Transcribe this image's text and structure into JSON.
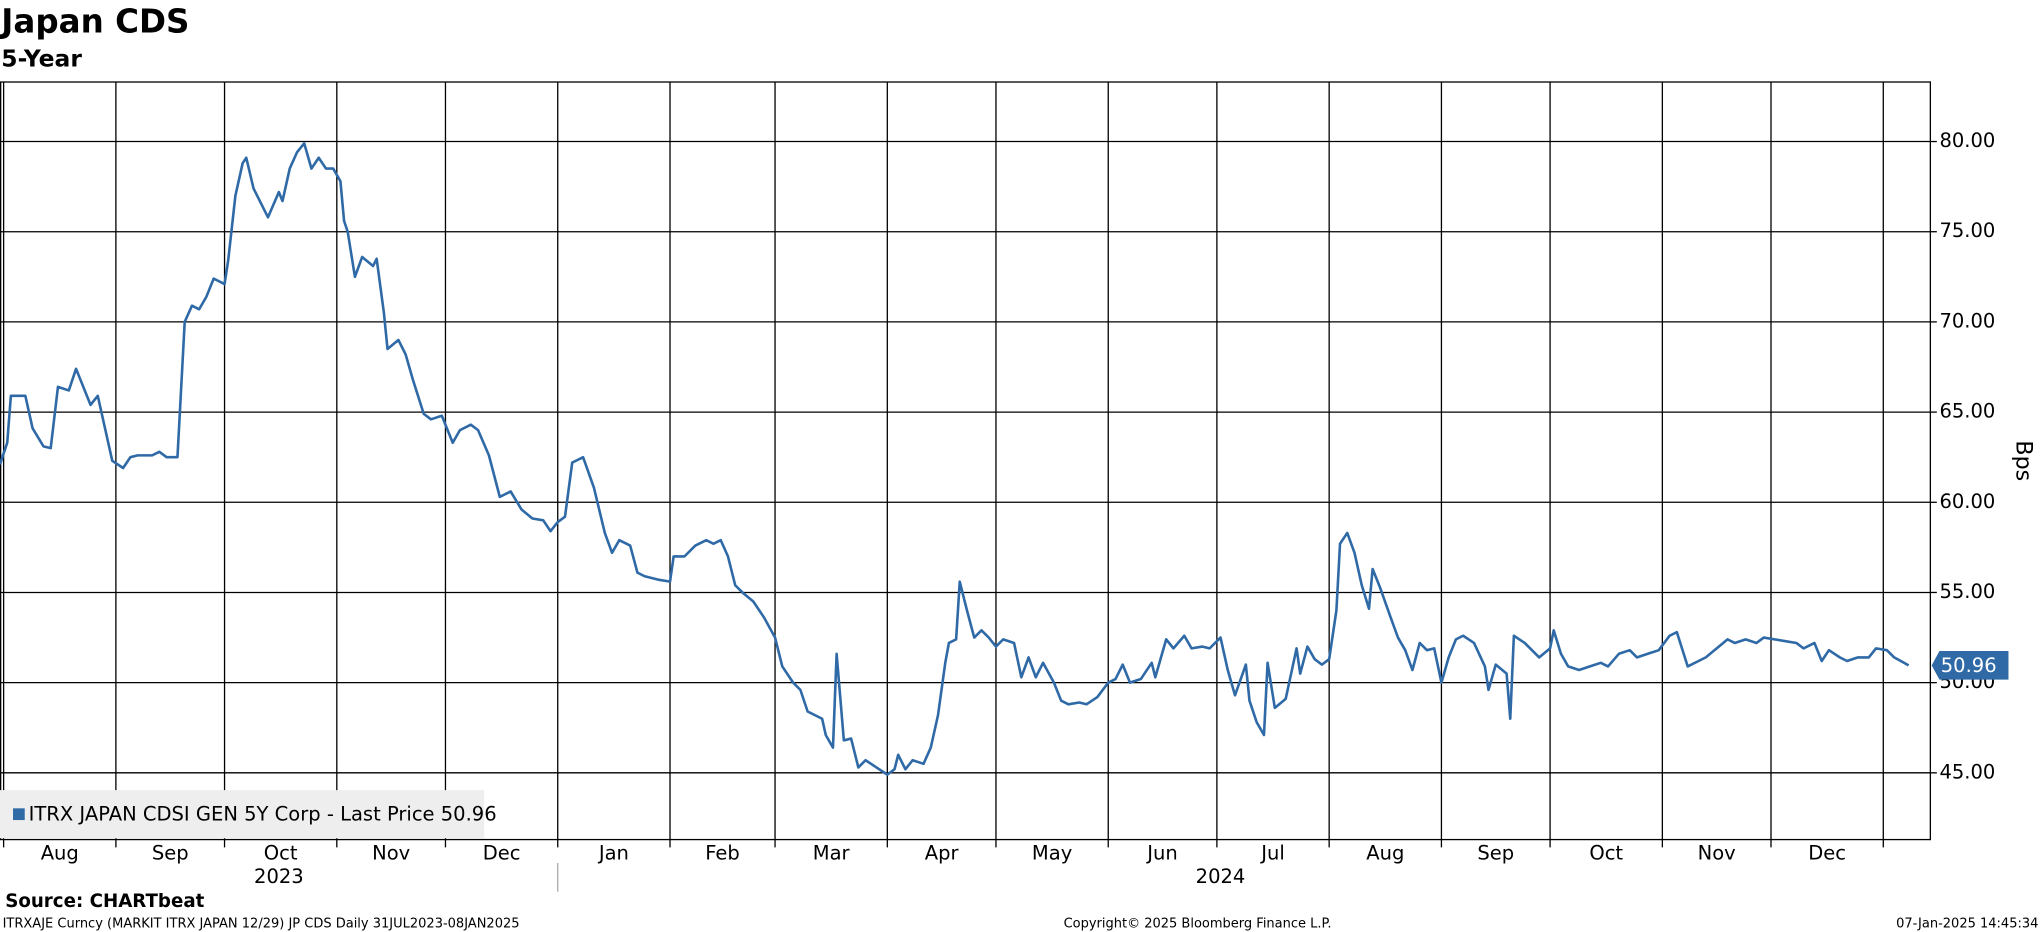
{
  "chart_data": {
    "type": "line",
    "title": "Japan CDS",
    "subtitle": "5-Year",
    "y_label": "Bps",
    "source": "Source: CHARTbeat",
    "footer_left": "ITRXAJE Curncy (MARKIT ITRX JAPAN 12/29) JP CDS  Daily 31JUL2023-08JAN2025",
    "footer_center": "Copyright© 2025 Bloomberg Finance L.P.",
    "footer_right": "07-Jan-2025 14:45:34",
    "grid": true,
    "legend": "bottom-left",
    "xlim": [
      "2023-07-31",
      "2025-01-14"
    ],
    "ylim": [
      41.3,
      83.3
    ],
    "yticks": [
      {
        "value": 45,
        "label": "45.00"
      },
      {
        "value": 50,
        "label": "50.00"
      },
      {
        "value": 55,
        "label": "55.00"
      },
      {
        "value": 60,
        "label": "60.00"
      },
      {
        "value": 65,
        "label": "65.00"
      },
      {
        "value": 70,
        "label": "70.00"
      },
      {
        "value": 75,
        "label": "75.00"
      },
      {
        "value": 80,
        "label": "80.00"
      }
    ],
    "xticks": [
      {
        "value": "2023-08-01",
        "label": "Aug"
      },
      {
        "value": "2023-09-01",
        "label": "Sep"
      },
      {
        "value": "2023-10-01",
        "label": "Oct"
      },
      {
        "value": "2023-11-01",
        "label": "Nov"
      },
      {
        "value": "2023-12-01",
        "label": "Dec"
      },
      {
        "value": "2024-01-01",
        "label": "Jan"
      },
      {
        "value": "2024-02-01",
        "label": "Feb"
      },
      {
        "value": "2024-03-01",
        "label": "Mar"
      },
      {
        "value": "2024-04-01",
        "label": "Apr"
      },
      {
        "value": "2024-05-01",
        "label": "May"
      },
      {
        "value": "2024-06-01",
        "label": "Jun"
      },
      {
        "value": "2024-07-01",
        "label": "Jul"
      },
      {
        "value": "2024-08-01",
        "label": "Aug"
      },
      {
        "value": "2024-09-01",
        "label": "Sep"
      },
      {
        "value": "2024-10-01",
        "label": "Oct"
      },
      {
        "value": "2024-11-01",
        "label": "Nov"
      },
      {
        "value": "2024-12-01",
        "label": "Dec"
      },
      {
        "value": "2025-01-01",
        "label": null
      }
    ],
    "x_groups": [
      {
        "label": "2023",
        "start": "2023-01-01",
        "end": "2024-01-01"
      },
      {
        "label": "2024",
        "start": "2024-01-01",
        "end": "2025-01-01"
      }
    ],
    "series": [
      {
        "name": "ITRX JAPAN CDSI GEN 5Y Corp - Last Price 50.96",
        "color": "#2f6aa7",
        "x": [
          "2023-07-31",
          "2023-08-02",
          "2023-08-03",
          "2023-08-07",
          "2023-08-09",
          "2023-08-12",
          "2023-08-14",
          "2023-08-16",
          "2023-08-19",
          "2023-08-21",
          "2023-08-22",
          "2023-08-25",
          "2023-08-27",
          "2023-08-31",
          "2023-09-03",
          "2023-09-05",
          "2023-09-07",
          "2023-09-11",
          "2023-09-13",
          "2023-09-15",
          "2023-09-18",
          "2023-09-20",
          "2023-09-22",
          "2023-09-24",
          "2023-09-26",
          "2023-09-28",
          "2023-10-01",
          "2023-10-02",
          "2023-10-04",
          "2023-10-06",
          "2023-10-07",
          "2023-10-09",
          "2023-10-13",
          "2023-10-16",
          "2023-10-17",
          "2023-10-19",
          "2023-10-21",
          "2023-10-23",
          "2023-10-25",
          "2023-10-27",
          "2023-10-29",
          "2023-10-31",
          "2023-11-02",
          "2023-11-03",
          "2023-11-04",
          "2023-11-06",
          "2023-11-08",
          "2023-11-11",
          "2023-11-12",
          "2023-11-14",
          "2023-11-15",
          "2023-11-18",
          "2023-11-20",
          "2023-11-22",
          "2023-11-25",
          "2023-11-27",
          "2023-11-30",
          "2023-12-03",
          "2023-12-05",
          "2023-12-08",
          "2023-12-10",
          "2023-12-13",
          "2023-12-16",
          "2023-12-19",
          "2023-12-22",
          "2023-12-25",
          "2023-12-28",
          "2023-12-30",
          "2024-01-01",
          "2024-01-03",
          "2024-01-05",
          "2024-01-08",
          "2024-01-11",
          "2024-01-14",
          "2024-01-16",
          "2024-01-18",
          "2024-01-21",
          "2024-01-23",
          "2024-01-25",
          "2024-01-29",
          "2024-02-01",
          "2024-02-02",
          "2024-02-05",
          "2024-02-08",
          "2024-02-11",
          "2024-02-13",
          "2024-02-15",
          "2024-02-17",
          "2024-02-19",
          "2024-02-21",
          "2024-02-24",
          "2024-02-27",
          "2024-03-01",
          "2024-03-03",
          "2024-03-06",
          "2024-03-08",
          "2024-03-10",
          "2024-03-14",
          "2024-03-15",
          "2024-03-17",
          "2024-03-18",
          "2024-03-20",
          "2024-03-22",
          "2024-03-24",
          "2024-03-26",
          "2024-03-29",
          "2024-04-01",
          "2024-04-03",
          "2024-04-04",
          "2024-04-06",
          "2024-04-08",
          "2024-04-11",
          "2024-04-13",
          "2024-04-15",
          "2024-04-17",
          "2024-04-18",
          "2024-04-20",
          "2024-04-21",
          "2024-04-23",
          "2024-04-25",
          "2024-04-27",
          "2024-04-29",
          "2024-05-01",
          "2024-05-03",
          "2024-05-06",
          "2024-05-08",
          "2024-05-10",
          "2024-05-12",
          "2024-05-14",
          "2024-05-17",
          "2024-05-19",
          "2024-05-21",
          "2024-05-24",
          "2024-05-26",
          "2024-05-29",
          "2024-06-01",
          "2024-06-03",
          "2024-06-05",
          "2024-06-07",
          "2024-06-10",
          "2024-06-13",
          "2024-06-14",
          "2024-06-17",
          "2024-06-19",
          "2024-06-22",
          "2024-06-24",
          "2024-06-27",
          "2024-06-29",
          "2024-07-02",
          "2024-07-04",
          "2024-07-06",
          "2024-07-09",
          "2024-07-10",
          "2024-07-12",
          "2024-07-14",
          "2024-07-15",
          "2024-07-17",
          "2024-07-20",
          "2024-07-23",
          "2024-07-24",
          "2024-07-26",
          "2024-07-28",
          "2024-07-30",
          "2024-08-01",
          "2024-08-03",
          "2024-08-04",
          "2024-08-06",
          "2024-08-08",
          "2024-08-10",
          "2024-08-12",
          "2024-08-13",
          "2024-08-15",
          "2024-08-18",
          "2024-08-20",
          "2024-08-22",
          "2024-08-24",
          "2024-08-26",
          "2024-08-28",
          "2024-08-30",
          "2024-09-01",
          "2024-09-03",
          "2024-09-05",
          "2024-09-07",
          "2024-09-10",
          "2024-09-13",
          "2024-09-14",
          "2024-09-16",
          "2024-09-19",
          "2024-09-20",
          "2024-09-21",
          "2024-09-24",
          "2024-09-27",
          "2024-09-28",
          "2024-10-01",
          "2024-10-02",
          "2024-10-04",
          "2024-10-06",
          "2024-10-09",
          "2024-10-12",
          "2024-10-15",
          "2024-10-17",
          "2024-10-20",
          "2024-10-23",
          "2024-10-25",
          "2024-10-28",
          "2024-10-31",
          "2024-11-03",
          "2024-11-05",
          "2024-11-08",
          "2024-11-11",
          "2024-11-13",
          "2024-11-16",
          "2024-11-19",
          "2024-11-21",
          "2024-11-24",
          "2024-11-27",
          "2024-11-29",
          "2024-12-02",
          "2024-12-05",
          "2024-12-08",
          "2024-12-10",
          "2024-12-13",
          "2024-12-15",
          "2024-12-17",
          "2024-12-20",
          "2024-12-22",
          "2024-12-25",
          "2024-12-28",
          "2024-12-30",
          "2025-01-02",
          "2025-01-04",
          "2025-01-08"
        ],
        "values": [
          62.1,
          63.3,
          65.9,
          65.9,
          64.1,
          63.1,
          63.0,
          66.4,
          66.2,
          67.4,
          66.9,
          65.4,
          65.9,
          62.3,
          61.9,
          62.5,
          62.6,
          62.6,
          62.8,
          62.5,
          62.5,
          70.0,
          70.9,
          70.7,
          71.4,
          72.4,
          72.1,
          73.4,
          77.0,
          78.8,
          79.1,
          77.4,
          75.8,
          77.2,
          76.7,
          78.5,
          79.4,
          79.9,
          78.5,
          79.1,
          78.5,
          78.5,
          77.8,
          75.6,
          75.0,
          72.5,
          73.6,
          73.1,
          73.5,
          70.5,
          68.5,
          69.0,
          68.2,
          66.8,
          64.9,
          64.6,
          64.8,
          63.3,
          64.0,
          64.3,
          64.0,
          62.6,
          60.3,
          60.6,
          59.6,
          59.1,
          59.0,
          58.4,
          58.9,
          59.2,
          62.2,
          62.5,
          60.8,
          58.3,
          57.2,
          57.9,
          57.6,
          56.1,
          55.9,
          55.7,
          55.6,
          57.0,
          57.0,
          57.6,
          57.9,
          57.7,
          57.9,
          57.0,
          55.4,
          55.0,
          54.5,
          53.6,
          52.5,
          50.9,
          50.0,
          49.6,
          48.4,
          48.0,
          47.1,
          46.4,
          51.6,
          46.8,
          46.9,
          45.3,
          45.7,
          45.3,
          44.9,
          45.2,
          46.0,
          45.2,
          45.7,
          45.5,
          46.4,
          48.2,
          51.1,
          52.2,
          52.4,
          55.6,
          54.0,
          52.5,
          52.9,
          52.5,
          52.0,
          52.4,
          52.2,
          50.3,
          51.4,
          50.3,
          51.1,
          50.0,
          49.0,
          48.8,
          48.9,
          48.8,
          49.2,
          50.0,
          50.2,
          51.0,
          50.0,
          50.2,
          51.1,
          50.3,
          52.4,
          51.9,
          52.6,
          51.9,
          52.0,
          51.9,
          52.5,
          50.7,
          49.3,
          51.0,
          49.0,
          47.8,
          47.1,
          51.1,
          48.6,
          49.1,
          51.9,
          50.5,
          52.0,
          51.3,
          51.0,
          51.3,
          54.0,
          57.7,
          58.3,
          57.2,
          55.4,
          54.1,
          56.3,
          55.3,
          53.6,
          52.5,
          51.8,
          50.7,
          52.2,
          51.8,
          51.9,
          50.0,
          51.4,
          52.4,
          52.6,
          52.2,
          50.9,
          49.6,
          51.0,
          50.5,
          48.0,
          52.6,
          52.2,
          51.6,
          51.4,
          51.9,
          52.9,
          51.6,
          50.9,
          50.7,
          50.9,
          51.1,
          50.9,
          51.6,
          51.8,
          51.4,
          51.6,
          51.8,
          52.6,
          52.8,
          50.9,
          51.2,
          51.4,
          51.9,
          52.4,
          52.2,
          52.4,
          52.2,
          52.5,
          52.4,
          52.3,
          52.2,
          51.9,
          52.2,
          51.2,
          51.8,
          51.4,
          51.2,
          51.4,
          51.4,
          51.9,
          51.8,
          51.4,
          50.96
        ]
      }
    ]
  }
}
